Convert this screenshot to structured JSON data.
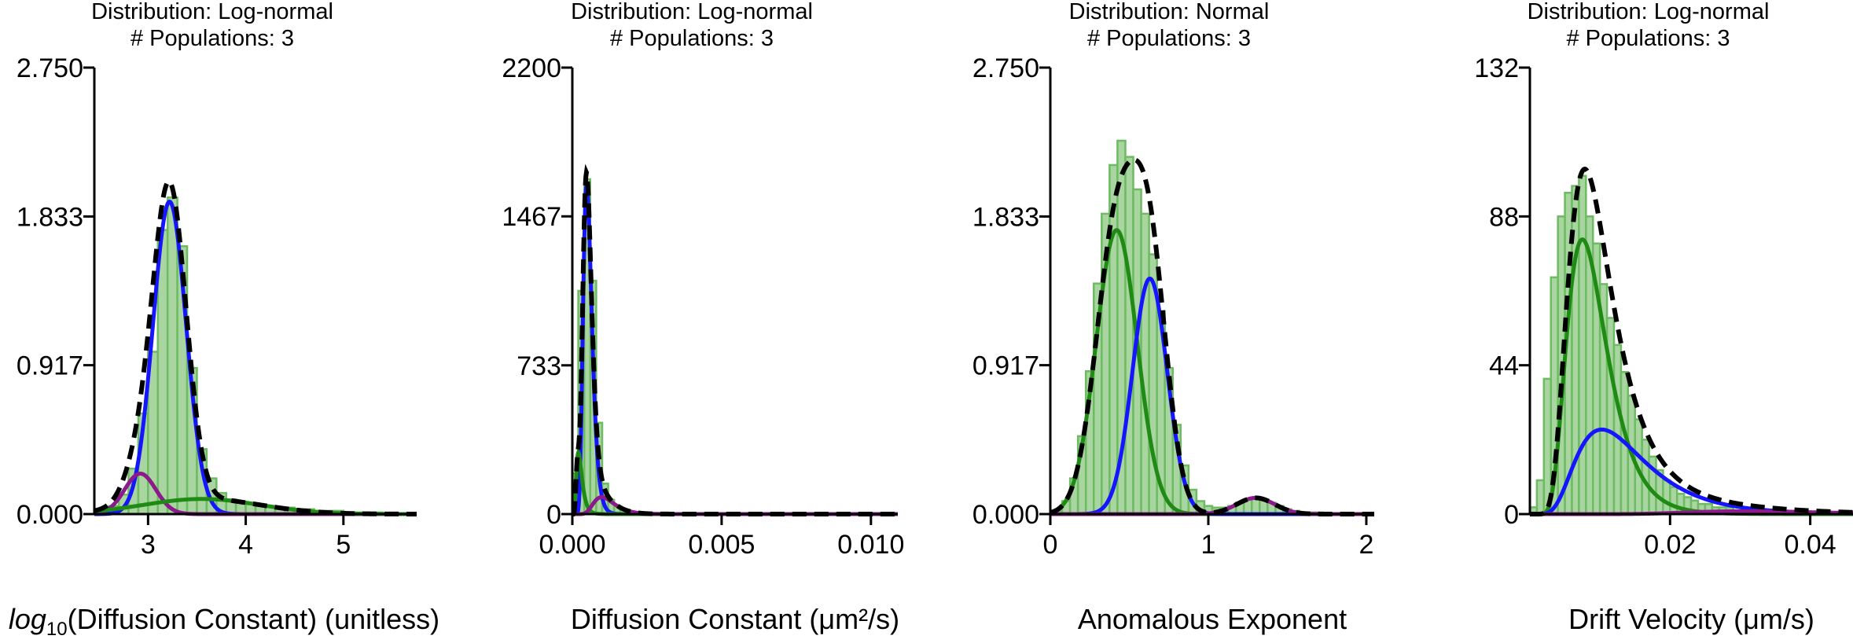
{
  "colors": {
    "bar_fill": "#a8d5a0",
    "bar_edge": "#6dbb62",
    "total": "#000000",
    "pop_green": "#1f8a14",
    "pop_blue": "#1515ff",
    "pop_purple": "#8b1a8b"
  },
  "chart_data": [
    {
      "type": "bar",
      "title": "Distribution: Log-normal",
      "subtitle": "# Populations: 3",
      "xlabel": "log10(Diffusion Constant) (unitless)",
      "ylabel": "",
      "xlim": [
        2.45,
        5.75
      ],
      "ylim": [
        0,
        2.75
      ],
      "yticks": [
        0,
        0.917,
        1.833,
        2.75
      ],
      "ytick_labels": [
        "0.000",
        "0.917",
        "1.833",
        "2.750"
      ],
      "xticks": [
        3,
        4,
        5
      ],
      "xtick_labels": [
        "3",
        "4",
        "5"
      ],
      "bins": {
        "x": [
          2.55,
          2.65,
          2.75,
          2.85,
          2.95,
          3.05,
          3.15,
          3.25,
          3.35,
          3.45,
          3.55,
          3.65,
          3.75,
          3.85,
          3.95,
          4.05,
          4.15,
          4.25,
          4.35,
          4.45,
          4.55,
          4.65,
          4.75,
          4.85,
          4.95,
          5.05,
          5.15,
          5.25,
          5.35,
          5.45,
          5.55,
          5.65
        ],
        "width": 0.1,
        "values": [
          0.02,
          0.05,
          0.12,
          0.28,
          0.62,
          1.0,
          1.75,
          1.95,
          1.65,
          0.9,
          0.4,
          0.22,
          0.13,
          0.09,
          0.07,
          0.06,
          0.05,
          0.05,
          0.04,
          0.04,
          0.03,
          0.03,
          0.02,
          0.02,
          0.02,
          0.01,
          0.01,
          0.01,
          0.01,
          0.0,
          0.0,
          0.0
        ]
      },
      "components": [
        {
          "color": "pop_blue",
          "kind": "normal",
          "weight": 0.82,
          "mu": 3.22,
          "sigma": 0.17
        },
        {
          "color": "pop_purple",
          "kind": "normal",
          "weight": 0.1,
          "mu": 2.92,
          "sigma": 0.16
        },
        {
          "color": "pop_green",
          "kind": "normal",
          "weight": 0.14,
          "mu": 3.55,
          "sigma": 0.6
        }
      ]
    },
    {
      "type": "bar",
      "title": "Distribution: Log-normal",
      "subtitle": "# Populations: 3",
      "xlabel": "Diffusion Constant (μm²/s)",
      "ylabel": "",
      "xlim": [
        0,
        0.0109
      ],
      "ylim": [
        0,
        2200
      ],
      "yticks": [
        0,
        733,
        1467,
        2200
      ],
      "ytick_labels": [
        "0",
        "733",
        "1467",
        "2200"
      ],
      "xticks": [
        0,
        0.005,
        0.01
      ],
      "xtick_labels": [
        "0.000",
        "0.005",
        "0.010"
      ],
      "bins": {
        "x": [
          0.0001,
          0.0003,
          0.0005,
          0.0007,
          0.0009,
          0.0011,
          0.0013,
          0.0015,
          0.0017,
          0.0019,
          0.0021,
          0.0023
        ],
        "width": 0.0002,
        "values": [
          200,
          1100,
          1650,
          1150,
          450,
          150,
          70,
          40,
          25,
          15,
          8,
          4
        ]
      },
      "components": [
        {
          "color": "pop_blue",
          "kind": "lognormal",
          "weight": 0.8,
          "mu": -7.55,
          "sigma": 0.3
        },
        {
          "color": "pop_green",
          "kind": "lognormal",
          "weight": 0.1,
          "mu": -8.3,
          "sigma": 0.45
        },
        {
          "color": "pop_purple",
          "kind": "lognormal",
          "weight": 0.1,
          "mu": -6.8,
          "sigma": 0.35
        }
      ],
      "area_scale": 0.0002
    },
    {
      "type": "bar",
      "title": "Distribution: Normal",
      "subtitle": "# Populations: 3",
      "xlabel": "Anomalous Exponent",
      "ylabel": "",
      "xlim": [
        0,
        2.05
      ],
      "ylim": [
        0,
        2.75
      ],
      "yticks": [
        0,
        0.917,
        1.833,
        2.75
      ],
      "ytick_labels": [
        "0.000",
        "0.917",
        "1.833",
        "2.750"
      ],
      "xticks": [
        0,
        1,
        2
      ],
      "xtick_labels": [
        "0",
        "1",
        "2"
      ],
      "bins": {
        "x": [
          0.05,
          0.1,
          0.15,
          0.2,
          0.25,
          0.3,
          0.35,
          0.4,
          0.45,
          0.5,
          0.55,
          0.6,
          0.65,
          0.7,
          0.75,
          0.8,
          0.85,
          0.9,
          0.95,
          1.0,
          1.05,
          1.1,
          1.15,
          1.2,
          1.25,
          1.3,
          1.35,
          1.4,
          1.45,
          1.5,
          1.55,
          1.6,
          1.65,
          1.7,
          1.75,
          1.8,
          1.85
        ],
        "width": 0.05,
        "values": [
          0.02,
          0.08,
          0.22,
          0.48,
          0.88,
          1.42,
          1.85,
          2.15,
          2.3,
          2.2,
          2.0,
          1.85,
          1.6,
          1.25,
          0.9,
          0.55,
          0.3,
          0.15,
          0.08,
          0.05,
          0.04,
          0.04,
          0.05,
          0.07,
          0.09,
          0.1,
          0.09,
          0.07,
          0.05,
          0.03,
          0.02,
          0.01,
          0.01,
          0.01,
          0.0,
          0.0,
          0.0
        ]
      },
      "components": [
        {
          "color": "pop_green",
          "kind": "normal",
          "weight": 0.57,
          "mu": 0.42,
          "sigma": 0.13
        },
        {
          "color": "pop_blue",
          "kind": "normal",
          "weight": 0.4,
          "mu": 0.63,
          "sigma": 0.11
        },
        {
          "color": "pop_purple",
          "kind": "normal",
          "weight": 0.03,
          "mu": 1.3,
          "sigma": 0.12
        }
      ]
    },
    {
      "type": "bar",
      "title": "Distribution: Log-normal",
      "subtitle": "# Populations: 3",
      "xlabel": "Drift Velocity (μm/s)",
      "ylabel": "",
      "xlim": [
        0,
        0.0461
      ],
      "ylim": [
        0,
        132
      ],
      "yticks": [
        0,
        44,
        88,
        132
      ],
      "ytick_labels": [
        "0",
        "44",
        "88",
        "132"
      ],
      "xticks": [
        0.02,
        0.04
      ],
      "xtick_labels": [
        "0.02",
        "0.04"
      ],
      "bins": {
        "x": [
          0.0005,
          0.0015,
          0.0025,
          0.0035,
          0.0045,
          0.0055,
          0.0065,
          0.0075,
          0.0085,
          0.0095,
          0.0105,
          0.0115,
          0.0125,
          0.0135,
          0.0145,
          0.0155,
          0.0165,
          0.0175,
          0.0185,
          0.0195,
          0.0205,
          0.0215,
          0.0225,
          0.0235,
          0.0245,
          0.0255,
          0.0265,
          0.0275,
          0.0285,
          0.0295,
          0.0305,
          0.0315,
          0.0325,
          0.0335,
          0.0345,
          0.0355,
          0.0365,
          0.0375,
          0.0385,
          0.0395,
          0.0405,
          0.0415,
          0.0425
        ],
        "width": 0.001,
        "values": [
          2,
          10,
          40,
          70,
          88,
          95,
          97,
          100,
          88,
          80,
          68,
          58,
          50,
          42,
          35,
          28,
          22,
          17,
          13,
          10,
          8,
          6,
          5,
          4,
          3,
          3,
          2,
          2,
          2,
          1,
          1,
          1,
          1,
          1,
          1,
          0,
          0,
          0,
          0,
          0,
          0,
          0,
          0
        ]
      },
      "components": [
        {
          "color": "pop_green",
          "kind": "lognormal",
          "weight": 0.63,
          "mu": -4.75,
          "sigma": 0.38
        },
        {
          "color": "pop_blue",
          "kind": "lognormal",
          "weight": 0.35,
          "mu": -4.35,
          "sigma": 0.48
        },
        {
          "color": "pop_purple",
          "kind": "lognormal",
          "weight": 0.02,
          "mu": -3.4,
          "sigma": 0.3
        }
      ],
      "area_scale": 0.001,
      "density_scale": 1.0
    }
  ]
}
